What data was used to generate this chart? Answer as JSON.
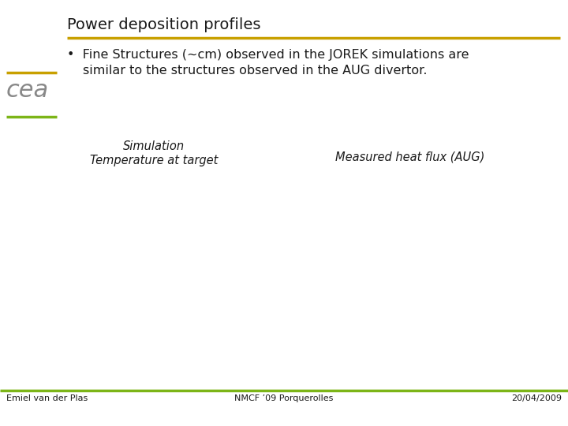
{
  "title": "Power deposition profiles",
  "title_underline_color": "#C8A000",
  "bullet_text_line1": "Fine Structures (~cm) observed in the JOREK simulations are",
  "bullet_text_line2": "similar to the structures observed in the AUG divertor.",
  "label_left_line1": "Simulation",
  "label_left_line2": "Temperature at target",
  "label_right": "Measured heat flux (AUG)",
  "footer_left": "Emiel van der Plas",
  "footer_center": "NMCF ’09 Porquerolles",
  "footer_right": "20/04/2009",
  "bg_color": "#FFFFFF",
  "title_color": "#1a1a1a",
  "text_color": "#1a1a1a",
  "footer_color": "#1a1a1a",
  "cea_line_top_color": "#C8A000",
  "cea_line_bottom_color": "#7CB518",
  "footer_line_color": "#7CB518",
  "cea_logo_color": "#888888",
  "title_fontsize": 14,
  "body_fontsize": 11.5,
  "label_fontsize": 10.5,
  "footer_fontsize": 8
}
